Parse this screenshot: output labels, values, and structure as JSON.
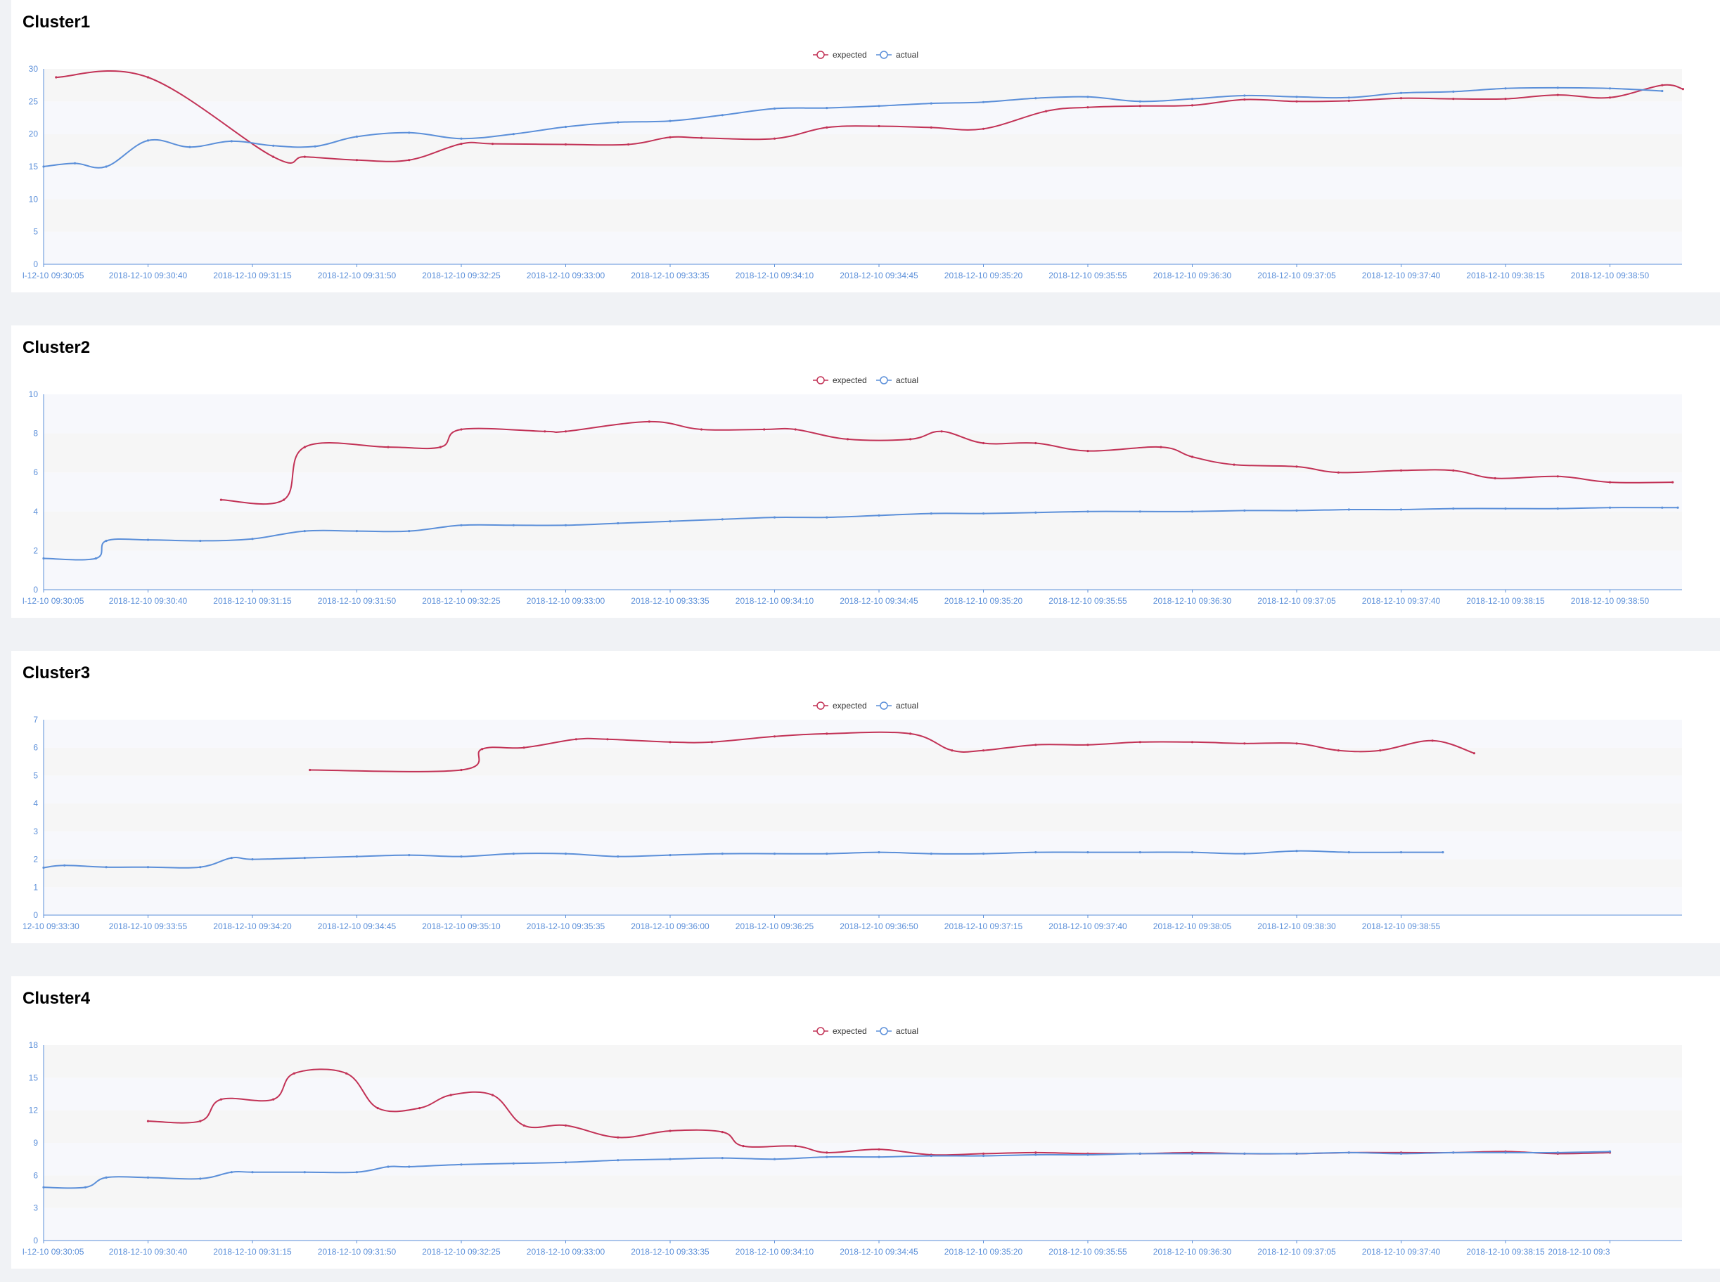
{
  "colors": {
    "expected": "#c23256",
    "actual": "#5b8fd9",
    "axis": "#5b8fd9",
    "band_dark": "#f6f6f6",
    "band_light": "#f7f8fc",
    "page_bg": "#f0f2f5"
  },
  "chart_data": [
    {
      "type": "line",
      "title": "Cluster1",
      "legend": [
        "expected",
        "actual"
      ],
      "legend_position": "top-center",
      "grid": "alternating-bands",
      "ylim": [
        0,
        30
      ],
      "yticks": [
        0,
        5,
        10,
        15,
        20,
        25,
        30
      ],
      "xticks": [
        "l-12-10 09:30:05",
        "2018-12-10 09:30:40",
        "2018-12-10 09:31:15",
        "2018-12-10 09:31:50",
        "2018-12-10 09:32:25",
        "2018-12-10 09:33:00",
        "2018-12-10 09:33:35",
        "2018-12-10 09:34:10",
        "2018-12-10 09:34:45",
        "2018-12-10 09:35:20",
        "2018-12-10 09:35:55",
        "2018-12-10 09:36:30",
        "2018-12-10 09:37:05",
        "2018-12-10 09:37:40",
        "2018-12-10 09:38:15",
        "2018-12-10 09:38:50"
      ],
      "series": [
        {
          "name": "expected",
          "x": [
            0.12,
            1,
            2.2,
            2.5,
            3,
            3.5,
            4,
            4.3,
            5,
            5.6,
            6,
            6.3,
            7,
            7.5,
            8,
            8.5,
            9,
            9.6,
            10,
            10.5,
            11,
            11.5,
            12,
            12.5,
            13,
            13.5,
            14,
            14.5,
            15,
            15.5,
            15.7
          ],
          "values": [
            28.7,
            28.7,
            16.5,
            16.5,
            16.0,
            16.0,
            18.5,
            18.5,
            18.4,
            18.4,
            19.5,
            19.4,
            19.3,
            21.0,
            21.2,
            21.0,
            20.8,
            23.5,
            24.1,
            24.3,
            24.4,
            25.3,
            25.0,
            25.1,
            25.5,
            25.4,
            25.4,
            26.0,
            25.6,
            27.5,
            26.9
          ]
        },
        {
          "name": "actual",
          "x": [
            0,
            0.3,
            0.6,
            1,
            1.4,
            1.8,
            2.2,
            2.6,
            3,
            3.5,
            4,
            4.5,
            5,
            5.5,
            6,
            6.5,
            7,
            7.5,
            8,
            8.5,
            9,
            9.5,
            10,
            10.5,
            11,
            11.5,
            12,
            12.5,
            13,
            13.5,
            14,
            14.5,
            15,
            15.5
          ],
          "values": [
            15.0,
            15.5,
            15.0,
            19.0,
            18.0,
            18.9,
            18.2,
            18.1,
            19.6,
            20.2,
            19.3,
            20.0,
            21.1,
            21.8,
            22.0,
            22.9,
            23.9,
            24.0,
            24.3,
            24.7,
            24.9,
            25.5,
            25.7,
            25.0,
            25.4,
            25.9,
            25.7,
            25.6,
            26.3,
            26.5,
            27.0,
            27.1,
            27.0,
            26.6
          ]
        }
      ]
    },
    {
      "type": "line",
      "title": "Cluster2",
      "legend": [
        "expected",
        "actual"
      ],
      "legend_position": "top-center",
      "grid": "alternating-bands",
      "ylim": [
        0,
        10
      ],
      "yticks": [
        0,
        2,
        4,
        6,
        8,
        10
      ],
      "xticks": [
        "l-12-10 09:30:05",
        "2018-12-10 09:30:40",
        "2018-12-10 09:31:15",
        "2018-12-10 09:31:50",
        "2018-12-10 09:32:25",
        "2018-12-10 09:33:00",
        "2018-12-10 09:33:35",
        "2018-12-10 09:34:10",
        "2018-12-10 09:34:45",
        "2018-12-10 09:35:20",
        "2018-12-10 09:35:55",
        "2018-12-10 09:36:30",
        "2018-12-10 09:37:05",
        "2018-12-10 09:37:40",
        "2018-12-10 09:38:15",
        "2018-12-10 09:38:50"
      ],
      "series": [
        {
          "name": "expected",
          "x": [
            1.7,
            2.3,
            2.5,
            3.3,
            3.8,
            4.0,
            4.8,
            5.0,
            5.8,
            6.3,
            6.9,
            7.2,
            7.7,
            8.3,
            8.6,
            9.0,
            9.5,
            10.0,
            10.7,
            11.0,
            11.4,
            12.0,
            12.4,
            13.0,
            13.5,
            13.9,
            14.5,
            15.0,
            15.6
          ],
          "values": [
            4.6,
            4.6,
            7.3,
            7.3,
            7.3,
            8.2,
            8.1,
            8.1,
            8.6,
            8.2,
            8.2,
            8.2,
            7.7,
            7.7,
            8.1,
            7.5,
            7.5,
            7.1,
            7.3,
            6.8,
            6.4,
            6.3,
            6.0,
            6.1,
            6.1,
            5.7,
            5.8,
            5.5,
            5.5
          ]
        },
        {
          "name": "actual",
          "x": [
            0,
            0.5,
            0.6,
            1,
            1.5,
            2,
            2.5,
            3,
            3.5,
            4,
            4.5,
            5,
            5.5,
            6,
            6.5,
            7,
            7.5,
            8,
            8.5,
            9,
            9.5,
            10,
            10.5,
            11,
            11.5,
            12,
            12.5,
            13,
            13.5,
            14,
            14.5,
            15,
            15.5,
            15.65
          ],
          "values": [
            1.6,
            1.6,
            2.5,
            2.55,
            2.5,
            2.6,
            3.0,
            3.0,
            3.0,
            3.3,
            3.3,
            3.3,
            3.4,
            3.5,
            3.6,
            3.7,
            3.7,
            3.8,
            3.9,
            3.9,
            3.95,
            4.0,
            4.0,
            4.0,
            4.05,
            4.05,
            4.1,
            4.1,
            4.15,
            4.15,
            4.15,
            4.2,
            4.2,
            4.2
          ]
        }
      ]
    },
    {
      "type": "line",
      "title": "Cluster3",
      "legend": [
        "expected",
        "actual"
      ],
      "legend_position": "top-center",
      "grid": "alternating-bands",
      "ylim": [
        0,
        7
      ],
      "yticks": [
        0,
        1,
        2,
        3,
        4,
        5,
        6,
        7
      ],
      "xticks": [
        "12-10 09:33:30",
        "2018-12-10 09:33:55",
        "2018-12-10 09:34:20",
        "2018-12-10 09:34:45",
        "2018-12-10 09:35:10",
        "2018-12-10 09:35:35",
        "2018-12-10 09:36:00",
        "2018-12-10 09:36:25",
        "2018-12-10 09:36:50",
        "2018-12-10 09:37:15",
        "2018-12-10 09:37:40",
        "2018-12-10 09:38:05",
        "2018-12-10 09:38:30",
        "2018-12-10 09:38:55"
      ],
      "series": [
        {
          "name": "expected",
          "x": [
            2.55,
            4.0,
            4.2,
            4.6,
            5.1,
            5.4,
            6.0,
            6.4,
            7.0,
            7.5,
            8.3,
            8.7,
            9.0,
            9.5,
            10.0,
            10.5,
            11.0,
            11.5,
            12.0,
            12.4,
            12.8,
            13.3,
            13.7
          ],
          "values": [
            5.2,
            5.2,
            5.95,
            6.0,
            6.3,
            6.3,
            6.2,
            6.2,
            6.4,
            6.5,
            6.5,
            5.9,
            5.9,
            6.1,
            6.1,
            6.2,
            6.2,
            6.15,
            6.15,
            5.9,
            5.9,
            6.25,
            5.8
          ]
        },
        {
          "name": "actual",
          "x": [
            0,
            0.2,
            0.6,
            1,
            1.5,
            1.8,
            2,
            2.5,
            3,
            3.5,
            4,
            4.5,
            5,
            5.5,
            6,
            6.5,
            7,
            7.5,
            8,
            8.5,
            9,
            9.5,
            10,
            10.5,
            11,
            11.5,
            12,
            12.5,
            13,
            13.4
          ],
          "values": [
            1.7,
            1.78,
            1.72,
            1.72,
            1.72,
            2.05,
            2.0,
            2.05,
            2.1,
            2.15,
            2.1,
            2.2,
            2.2,
            2.1,
            2.15,
            2.2,
            2.2,
            2.2,
            2.25,
            2.2,
            2.2,
            2.25,
            2.25,
            2.25,
            2.25,
            2.2,
            2.3,
            2.25,
            2.25,
            2.25
          ]
        }
      ]
    },
    {
      "type": "line",
      "title": "Cluster4",
      "legend": [
        "expected",
        "actual"
      ],
      "legend_position": "top-center",
      "grid": "alternating-bands",
      "ylim": [
        0,
        18
      ],
      "yticks": [
        0,
        3,
        6,
        9,
        12,
        15,
        18
      ],
      "xticks": [
        "l-12-10 09:30:05",
        "2018-12-10 09:30:40",
        "2018-12-10 09:31:15",
        "2018-12-10 09:31:50",
        "2018-12-10 09:32:25",
        "2018-12-10 09:33:00",
        "2018-12-10 09:33:35",
        "2018-12-10 09:34:10",
        "2018-12-10 09:34:45",
        "2018-12-10 09:35:20",
        "2018-12-10 09:35:55",
        "2018-12-10 09:36:30",
        "2018-12-10 09:37:05",
        "2018-12-10 09:37:40",
        "2018-12-10 09:38:15",
        "2018-12-10 09:3"
      ],
      "series": [
        {
          "name": "expected",
          "x": [
            1.0,
            1.5,
            1.7,
            2.2,
            2.4,
            2.9,
            3.2,
            3.6,
            3.9,
            4.3,
            4.6,
            5.0,
            5.5,
            6.0,
            6.5,
            6.7,
            7.2,
            7.5,
            8.0,
            8.5,
            9.0,
            9.5,
            10.0,
            10.5,
            11.0,
            11.5,
            12.0,
            12.5,
            13.0,
            13.5,
            14.0,
            14.5,
            15.0
          ],
          "values": [
            11.0,
            11.0,
            13.0,
            13.0,
            15.4,
            15.4,
            12.2,
            12.2,
            13.4,
            13.4,
            10.6,
            10.6,
            9.5,
            10.1,
            10.0,
            8.7,
            8.7,
            8.1,
            8.4,
            7.9,
            8.0,
            8.1,
            8.0,
            8.0,
            8.1,
            8.0,
            8.0,
            8.1,
            8.1,
            8.1,
            8.2,
            8.0,
            8.1
          ]
        },
        {
          "name": "actual",
          "x": [
            0,
            0.4,
            0.6,
            1,
            1.5,
            1.8,
            2.0,
            2.5,
            3,
            3.3,
            3.5,
            4,
            4.5,
            5,
            5.5,
            6,
            6.5,
            7,
            7.5,
            8,
            8.5,
            9,
            9.5,
            10,
            10.5,
            11,
            11.5,
            12,
            12.5,
            13,
            13.5,
            14,
            14.5,
            15
          ],
          "values": [
            4.9,
            4.9,
            5.8,
            5.8,
            5.7,
            6.3,
            6.3,
            6.3,
            6.3,
            6.8,
            6.8,
            7.0,
            7.1,
            7.2,
            7.4,
            7.5,
            7.6,
            7.5,
            7.7,
            7.7,
            7.8,
            7.8,
            7.9,
            7.9,
            8.0,
            8.0,
            8.0,
            8.0,
            8.1,
            8.0,
            8.1,
            8.1,
            8.1,
            8.2
          ]
        }
      ]
    }
  ]
}
